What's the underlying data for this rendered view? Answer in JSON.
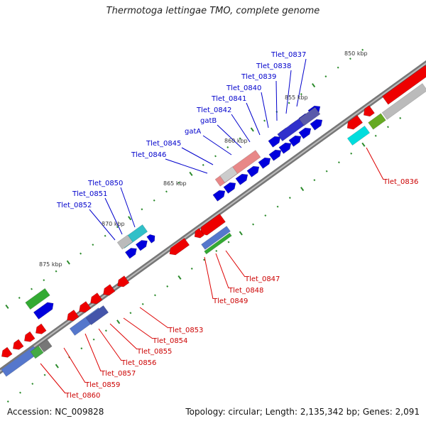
{
  "title": "Thermotoga lettingae TMO, complete genome",
  "footer": {
    "accession": "Accession: NC_009828",
    "summary": "Topology: circular; Length: 2,135,342 bp; Genes: 2,091"
  },
  "kbp_labels": [
    "850 kbp",
    "855 kbp",
    "860 kbp",
    "865 kbp",
    "870 kbp",
    "875 kbp"
  ],
  "genes_top": [
    "Tlet_0837",
    "Tlet_0838",
    "Tlet_0839",
    "Tlet_0840",
    "Tlet_0841",
    "Tlet_0842",
    "gatB",
    "gatA",
    "Tlet_0845",
    "Tlet_0846",
    "Tlet_0850",
    "Tlet_0851",
    "Tlet_0852"
  ],
  "genes_bottom": [
    "Tlet_0836",
    "Tlet_0847",
    "Tlet_0848",
    "Tlet_0849",
    "Tlet_0853",
    "Tlet_0854",
    "Tlet_0855",
    "Tlet_0856",
    "Tlet_0857",
    "Tlet_0859",
    "Tlet_0860"
  ],
  "colors": {
    "forward_cds": "#0000dd",
    "reverse_cds": "#ee0000",
    "top_label": "#0000cc",
    "bottom_label": "#cc0000",
    "backbone": "#888888",
    "tick": "#228822"
  }
}
